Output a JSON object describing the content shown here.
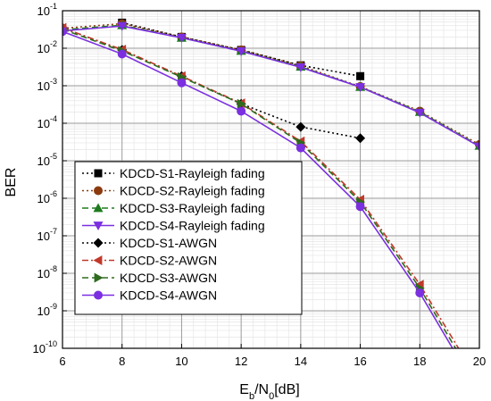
{
  "chart_data": {
    "type": "line",
    "title": "",
    "xlabel": {
      "main": "E",
      "sub1": "b",
      "mid": "/N",
      "sub2": "0",
      "tail": "[dB]"
    },
    "ylabel": "BER",
    "xlim": [
      6,
      20
    ],
    "ylim": [
      1e-10,
      0.1
    ],
    "yscale": "log",
    "x_ticks": [
      "6",
      "8",
      "10",
      "12",
      "14",
      "16",
      "18",
      "20"
    ],
    "y_ticks": [
      {
        "base": "10",
        "exp": "-1"
      },
      {
        "base": "10",
        "exp": "-2"
      },
      {
        "base": "10",
        "exp": "-3"
      },
      {
        "base": "10",
        "exp": "-4"
      },
      {
        "base": "10",
        "exp": "-5"
      },
      {
        "base": "10",
        "exp": "-6"
      },
      {
        "base": "10",
        "exp": "-7"
      },
      {
        "base": "10",
        "exp": "-8"
      },
      {
        "base": "10",
        "exp": "-9"
      },
      {
        "base": "10",
        "exp": "-10"
      }
    ],
    "grid": true,
    "legend_position": "bottom-left",
    "series": [
      {
        "name": "KDCD-S1-Rayleigh fading",
        "color": "#000000",
        "dash": "dot",
        "marker": "square",
        "x": [
          8,
          10,
          12,
          14,
          16
        ],
        "y": [
          0.048,
          0.02,
          0.009,
          0.0035,
          0.0018
        ]
      },
      {
        "name": "KDCD-S2-Rayleigh fading",
        "color": "#8B3A0F",
        "dash": "dot",
        "marker": "circle",
        "x": [
          6,
          8,
          10,
          12,
          14,
          16,
          18,
          20
        ],
        "y": [
          0.034,
          0.045,
          0.02,
          0.009,
          0.0034,
          0.00095,
          0.00021,
          2.7e-05
        ]
      },
      {
        "name": "KDCD-S3-Rayleigh fading",
        "color": "#1E7A1E",
        "dash": "dash",
        "marker": "triangle-up",
        "x": [
          6,
          8,
          10,
          12,
          14,
          16,
          18,
          20
        ],
        "y": [
          0.031,
          0.041,
          0.019,
          0.0085,
          0.0032,
          0.00093,
          0.0002,
          2.5e-05
        ]
      },
      {
        "name": "KDCD-S4-Rayleigh fading",
        "color": "#7B2FE0",
        "dash": "solid",
        "marker": "triangle-down",
        "x": [
          6,
          8,
          10,
          12,
          14,
          16,
          18,
          20
        ],
        "y": [
          0.029,
          0.039,
          0.019,
          0.0083,
          0.0031,
          0.00092,
          0.00019,
          2.4e-05
        ]
      },
      {
        "name": "KDCD-S1-AWGN",
        "color": "#000000",
        "dash": "dot",
        "marker": "diamond",
        "x": [
          6,
          8,
          10,
          12,
          14,
          16
        ],
        "y": [
          0.035,
          0.009,
          0.0018,
          0.00033,
          8e-05,
          4e-05
        ]
      },
      {
        "name": "KDCD-S2-AWGN",
        "color": "#C0392B",
        "dash": "dashdot",
        "marker": "triangle-left",
        "x": [
          6,
          8,
          10,
          12,
          14,
          16,
          18,
          19.3
        ],
        "y": [
          0.035,
          0.0092,
          0.0018,
          0.00034,
          3.3e-05,
          9.2e-07,
          5e-09,
          1e-10
        ]
      },
      {
        "name": "KDCD-S3-AWGN",
        "color": "#2E6B1E",
        "dash": "dash",
        "marker": "triangle-right",
        "x": [
          6,
          8,
          10,
          12,
          14,
          16,
          18,
          19.2
        ],
        "y": [
          0.032,
          0.0085,
          0.0017,
          0.00033,
          3e-05,
          8e-07,
          4e-09,
          1e-10
        ]
      },
      {
        "name": "KDCD-S4-AWGN",
        "color": "#7B2FE0",
        "dash": "solid",
        "marker": "circle",
        "x": [
          6,
          8,
          10,
          12,
          14,
          16,
          18,
          19.1
        ],
        "y": [
          0.028,
          0.007,
          0.0012,
          0.00021,
          2.2e-05,
          6e-07,
          3e-09,
          1e-10
        ]
      }
    ]
  }
}
